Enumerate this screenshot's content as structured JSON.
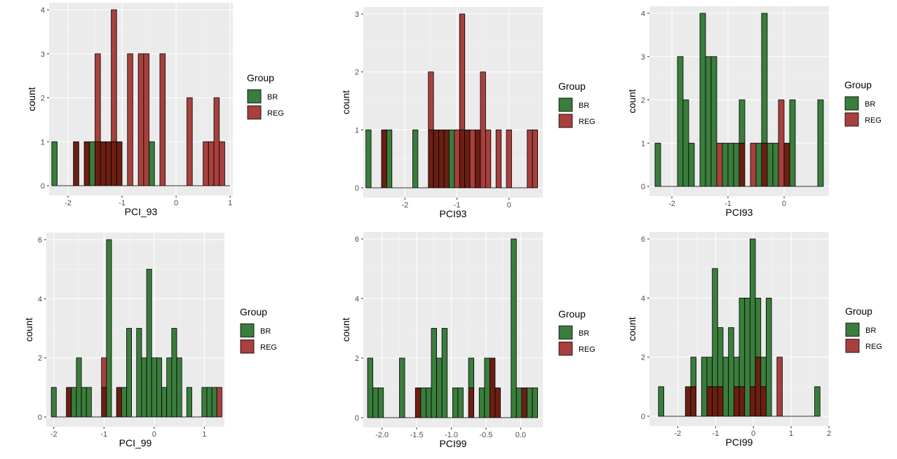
{
  "legend_title": "Group",
  "groups": [
    {
      "name": "BR",
      "color": "#3a7d3c"
    },
    {
      "name": "REG",
      "color": "#a8403e"
    }
  ],
  "overlap_color": "#6b1e12",
  "panel_bg": "#ebebeb",
  "chart_data": [
    {
      "type": "bar",
      "subtype": "histogram-overlaid",
      "xlabel": "PCI_93",
      "ylabel": "count",
      "xlim": [
        -2.35,
        1.05
      ],
      "ylim": [
        0,
        4
      ],
      "xticks": [
        -2,
        -1,
        0,
        1
      ],
      "xtick_labels": [
        "-2",
        "-1",
        "0",
        "1"
      ],
      "yticks": [
        0,
        1,
        2,
        3,
        4
      ],
      "ytick_labels": [
        "0",
        "1",
        "2",
        "3",
        "4"
      ],
      "bin_width": 0.1,
      "bin_centers": [
        -2.25,
        -2.15,
        -2.05,
        -1.95,
        -1.85,
        -1.75,
        -1.65,
        -1.55,
        -1.45,
        -1.35,
        -1.25,
        -1.15,
        -1.05,
        -0.95,
        -0.85,
        -0.75,
        -0.65,
        -0.55,
        -0.45,
        -0.35,
        -0.25,
        -0.15,
        -0.05,
        0.05,
        0.15,
        0.25,
        0.35,
        0.45,
        0.55,
        0.65,
        0.75,
        0.85,
        0.95
      ],
      "series": [
        {
          "name": "BR",
          "values": [
            1,
            0,
            0,
            0,
            1,
            0,
            1,
            1,
            1,
            1,
            1,
            1,
            1,
            0,
            0,
            0,
            0,
            0,
            1,
            0,
            0,
            0,
            0,
            0,
            0,
            0,
            0,
            0,
            0,
            0,
            0,
            0,
            0
          ]
        },
        {
          "name": "REG",
          "values": [
            0,
            0,
            0,
            0,
            1,
            0,
            1,
            0,
            3,
            1,
            1,
            4,
            1,
            0,
            3,
            0,
            3,
            3,
            0,
            0,
            3,
            0,
            0,
            0,
            0,
            2,
            0,
            0,
            1,
            1,
            2,
            1,
            0
          ]
        }
      ]
    },
    {
      "type": "bar",
      "subtype": "histogram-overlaid",
      "xlabel": "PCI93",
      "ylabel": "count",
      "xlim": [
        -2.8,
        0.65
      ],
      "ylim": [
        0,
        3
      ],
      "xticks": [
        -2,
        -1,
        0
      ],
      "xtick_labels": [
        "-2",
        "-1",
        "0"
      ],
      "yticks": [
        0,
        1,
        2,
        3
      ],
      "ytick_labels": [
        "0",
        "1",
        "2",
        "3"
      ],
      "bin_width": 0.1,
      "bin_centers": [
        -2.7,
        -2.6,
        -2.5,
        -2.4,
        -2.3,
        -2.2,
        -2.1,
        -2.0,
        -1.9,
        -1.8,
        -1.7,
        -1.6,
        -1.5,
        -1.4,
        -1.3,
        -1.2,
        -1.1,
        -1.0,
        -0.9,
        -0.8,
        -0.7,
        -0.6,
        -0.5,
        -0.4,
        -0.3,
        -0.2,
        -0.1,
        0.0,
        0.1,
        0.2,
        0.3,
        0.4,
        0.5
      ],
      "series": [
        {
          "name": "BR",
          "values": [
            1,
            0,
            0,
            1,
            1,
            0,
            0,
            0,
            0,
            1,
            0,
            0,
            1,
            1,
            1,
            1,
            1,
            0,
            1,
            1,
            0,
            1,
            0,
            0,
            0,
            0,
            0,
            0,
            0,
            0,
            0,
            0,
            0
          ]
        },
        {
          "name": "REG",
          "values": [
            0,
            0,
            0,
            1,
            0,
            0,
            0,
            0,
            0,
            0,
            0,
            0,
            2,
            1,
            1,
            1,
            0,
            1,
            3,
            1,
            1,
            1,
            2,
            1,
            0,
            1,
            0,
            1,
            0,
            0,
            0,
            1,
            1
          ]
        }
      ]
    },
    {
      "type": "bar",
      "subtype": "histogram-overlaid",
      "xlabel": "PCI93",
      "ylabel": "count",
      "xlim": [
        -2.4,
        0.8
      ],
      "ylim": [
        0,
        4
      ],
      "xticks": [
        -2,
        -1,
        0
      ],
      "xtick_labels": [
        "-2",
        "-1",
        "0"
      ],
      "yticks": [
        0,
        1,
        2,
        3,
        4
      ],
      "ytick_labels": [
        "0",
        "1",
        "2",
        "3",
        "4"
      ],
      "bin_width": 0.1,
      "bin_centers": [
        -2.25,
        -2.15,
        -2.05,
        -1.95,
        -1.85,
        -1.75,
        -1.65,
        -1.55,
        -1.45,
        -1.35,
        -1.25,
        -1.15,
        -1.05,
        -0.95,
        -0.85,
        -0.75,
        -0.65,
        -0.55,
        -0.45,
        -0.35,
        -0.25,
        -0.15,
        -0.05,
        0.05,
        0.15,
        0.25,
        0.35,
        0.45,
        0.55,
        0.65
      ],
      "series": [
        {
          "name": "BR",
          "values": [
            1,
            0,
            0,
            0,
            3,
            2,
            1,
            0,
            4,
            3,
            3,
            0,
            1,
            1,
            1,
            2,
            0,
            0,
            1,
            4,
            1,
            1,
            0,
            1,
            2,
            0,
            0,
            0,
            0,
            2
          ]
        },
        {
          "name": "REG",
          "values": [
            0,
            0,
            0,
            0,
            0,
            0,
            0,
            0,
            0,
            0,
            0,
            1,
            0,
            0,
            0,
            1,
            0,
            1,
            0,
            1,
            0,
            0,
            2,
            1,
            0,
            0,
            0,
            0,
            0,
            0
          ]
        }
      ]
    },
    {
      "type": "bar",
      "subtype": "histogram-overlaid",
      "xlabel": "PCI_99",
      "ylabel": "count",
      "xlim": [
        -2.15,
        1.4
      ],
      "ylim": [
        0,
        6
      ],
      "xticks": [
        -2,
        -1,
        0,
        1
      ],
      "xtick_labels": [
        "-2",
        "-1",
        "0",
        "1"
      ],
      "yticks": [
        0,
        2,
        4,
        6
      ],
      "ytick_labels": [
        "0",
        "2",
        "4",
        "6"
      ],
      "bin_width": 0.1,
      "bin_centers": [
        -2.0,
        -1.9,
        -1.8,
        -1.7,
        -1.6,
        -1.5,
        -1.4,
        -1.3,
        -1.2,
        -1.1,
        -1.0,
        -0.9,
        -0.8,
        -0.7,
        -0.6,
        -0.5,
        -0.4,
        -0.3,
        -0.2,
        -0.1,
        0.0,
        0.1,
        0.2,
        0.3,
        0.4,
        0.5,
        0.6,
        0.7,
        0.8,
        0.9,
        1.0,
        1.1,
        1.2,
        1.3
      ],
      "series": [
        {
          "name": "BR",
          "values": [
            1,
            0,
            0,
            1,
            1,
            2,
            1,
            1,
            0,
            0,
            1,
            6,
            0,
            1,
            1,
            3,
            0,
            3,
            2,
            5,
            2,
            2,
            1,
            2,
            3,
            2,
            0,
            1,
            0,
            0,
            1,
            1,
            1,
            0
          ]
        },
        {
          "name": "REG",
          "values": [
            0,
            0,
            0,
            1,
            0,
            0,
            0,
            0,
            0,
            0,
            2,
            0,
            0,
            1,
            0,
            0,
            0,
            0,
            0,
            0,
            0,
            0,
            0,
            0,
            0,
            0,
            0,
            0,
            0,
            0,
            0,
            0,
            0,
            1
          ]
        }
      ]
    },
    {
      "type": "bar",
      "subtype": "histogram-overlaid",
      "xlabel": "PCI99",
      "ylabel": "count",
      "xlim": [
        -2.27,
        0.32
      ],
      "ylim": [
        0,
        6
      ],
      "xticks": [
        -2.0,
        -1.5,
        -1.0,
        -0.5,
        0.0
      ],
      "xtick_labels": [
        "-2.0",
        "-1.5",
        "-1.0",
        "-0.5",
        "0.0"
      ],
      "yticks": [
        0,
        2,
        4,
        6
      ],
      "ytick_labels": [
        "0",
        "2",
        "4",
        "6"
      ],
      "bin_width": 0.0766,
      "bin_centers": [
        -2.17,
        -2.093,
        -2.017,
        -1.94,
        -1.863,
        -1.787,
        -1.71,
        -1.633,
        -1.557,
        -1.48,
        -1.403,
        -1.327,
        -1.25,
        -1.173,
        -1.097,
        -1.02,
        -0.943,
        -0.867,
        -0.79,
        -0.713,
        -0.637,
        -0.56,
        -0.483,
        -0.407,
        -0.33,
        -0.253,
        -0.177,
        -0.1,
        -0.023,
        0.053,
        0.13,
        0.207
      ],
      "series": [
        {
          "name": "BR",
          "values": [
            2,
            1,
            1,
            0,
            0,
            0,
            2,
            0,
            0,
            1,
            1,
            1,
            3,
            2,
            3,
            0,
            1,
            1,
            0,
            2,
            0,
            1,
            2,
            2,
            1,
            0,
            0,
            6,
            1,
            1,
            1,
            1
          ]
        },
        {
          "name": "REG",
          "values": [
            0,
            0,
            0,
            0,
            0,
            0,
            0,
            0,
            0,
            1,
            0,
            0,
            0,
            0,
            0,
            0,
            0,
            0,
            0,
            1,
            0,
            0,
            0,
            2,
            1,
            0,
            0,
            0,
            0,
            1,
            0,
            0
          ]
        }
      ]
    },
    {
      "type": "bar",
      "subtype": "histogram-overlaid",
      "xlabel": "PCI99",
      "ylabel": "count",
      "xlim": [
        -2.75,
        2.0
      ],
      "ylim": [
        0,
        6
      ],
      "xticks": [
        -2,
        -1,
        0,
        1,
        2
      ],
      "xtick_labels": [
        "-2",
        "-1",
        "0",
        "1",
        "2"
      ],
      "yticks": [
        0,
        2,
        4,
        6
      ],
      "ytick_labels": [
        "0",
        "2",
        "4",
        "6"
      ],
      "bin_width": 0.1424,
      "bin_centers": [
        -2.44,
        -2.298,
        -2.155,
        -2.013,
        -1.87,
        -1.728,
        -1.585,
        -1.443,
        -1.3,
        -1.158,
        -1.015,
        -0.873,
        -0.73,
        -0.588,
        -0.445,
        -0.303,
        -0.16,
        -0.018,
        0.125,
        0.267,
        0.41,
        0.552,
        0.695,
        0.837,
        0.98,
        1.122,
        1.265,
        1.407,
        1.55,
        1.692
      ],
      "series": [
        {
          "name": "BR",
          "values": [
            1,
            0,
            0,
            0,
            0,
            1,
            2,
            0,
            2,
            2,
            5,
            3,
            2,
            3,
            2,
            4,
            4,
            6,
            4,
            2,
            4,
            0,
            0,
            0,
            0,
            0,
            0,
            0,
            0,
            1
          ]
        },
        {
          "name": "REG",
          "values": [
            0,
            0,
            0,
            0,
            0,
            1,
            1,
            0,
            0,
            1,
            1,
            1,
            0,
            0,
            1,
            1,
            0,
            1,
            2,
            1,
            0,
            0,
            2,
            0,
            0,
            0,
            0,
            0,
            0,
            0
          ]
        }
      ]
    }
  ]
}
